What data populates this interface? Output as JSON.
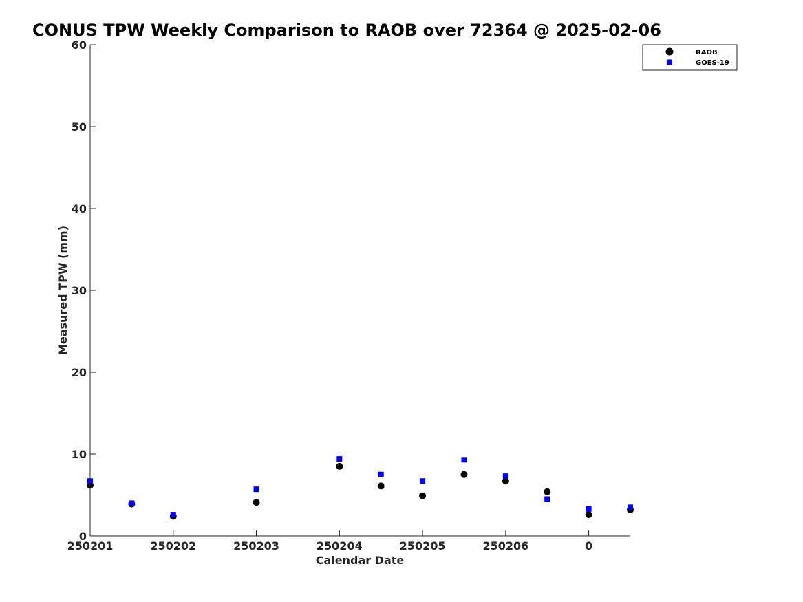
{
  "chart_data": {
    "type": "scatter",
    "title": "CONUS TPW Weekly Comparison to RAOB over 72364 @ 2025-02-06",
    "xlabel": "Calendar Date",
    "ylabel": "Measured TPW (mm)",
    "xlim": [
      0,
      13
    ],
    "ylim": [
      0,
      60
    ],
    "yticks": [
      0,
      10,
      20,
      30,
      40,
      50,
      60
    ],
    "ytick_labels": [
      "0",
      "10",
      "20",
      "30",
      "40",
      "50",
      "60"
    ],
    "xticks": [
      0,
      2,
      4,
      6,
      8,
      10,
      12
    ],
    "xtick_labels": [
      "250201",
      "250202",
      "250203",
      "250204",
      "250205",
      "250206",
      "0"
    ],
    "grid": false,
    "legend_position": "top-right",
    "series": [
      {
        "name": "RAOB",
        "marker": "circle",
        "color": "#000000",
        "x": [
          0,
          1,
          2,
          4,
          6,
          7,
          8,
          9,
          10,
          11,
          12,
          13
        ],
        "values": [
          6.2,
          3.9,
          2.4,
          4.1,
          8.5,
          6.1,
          4.9,
          7.5,
          6.7,
          5.4,
          2.6,
          3.2
        ]
      },
      {
        "name": "GOES-19",
        "marker": "square",
        "color": "#0000ff",
        "x": [
          0,
          1,
          2,
          4,
          6,
          7,
          8,
          9,
          10,
          11,
          12,
          13
        ],
        "values": [
          6.7,
          4.0,
          2.6,
          5.7,
          9.4,
          7.5,
          6.7,
          9.3,
          7.3,
          4.5,
          3.3,
          3.5
        ]
      }
    ]
  }
}
